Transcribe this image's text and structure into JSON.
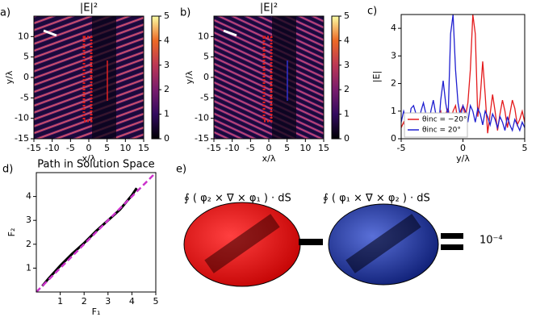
{
  "chart_data": [
    {
      "type": "heatmap",
      "panel_label": "a)",
      "title": "|E|²",
      "xlabel": "x/λ",
      "ylabel": "y/λ",
      "xlim": [
        -15,
        15
      ],
      "ylim": [
        -15,
        15
      ],
      "xticks": [
        -15,
        -10,
        -5,
        0,
        5,
        10,
        15
      ],
      "yticks": [
        -15,
        -10,
        -5,
        0,
        5,
        10
      ],
      "clim": [
        0,
        5
      ],
      "cticks": [
        0,
        1,
        2,
        3,
        4,
        5
      ]
    },
    {
      "type": "heatmap",
      "panel_label": "b)",
      "title": "|E|²",
      "xlabel": "x/λ",
      "ylabel": "y/λ",
      "xlim": [
        -15,
        15
      ],
      "ylim": [
        -15,
        15
      ],
      "xticks": [
        -15,
        -10,
        -5,
        0,
        5,
        10,
        15
      ],
      "yticks": [
        -15,
        -10,
        -5,
        0,
        5,
        10
      ],
      "clim": [
        0,
        5
      ],
      "cticks": [
        0,
        1,
        2,
        3,
        4,
        5
      ]
    },
    {
      "type": "line",
      "panel_label": "c)",
      "xlabel": "y/λ",
      "ylabel": "|E|",
      "xlim": [
        -5,
        5
      ],
      "ylim": [
        0,
        4.5
      ],
      "xticks": [
        -5,
        0,
        5
      ],
      "yticks": [
        0,
        1,
        2,
        3,
        4
      ],
      "legend": "lower left",
      "x": [
        -5.0,
        -4.8,
        -4.6,
        -4.4,
        -4.2,
        -4.0,
        -3.8,
        -3.6,
        -3.4,
        -3.2,
        -3.0,
        -2.8,
        -2.6,
        -2.4,
        -2.2,
        -2.0,
        -1.8,
        -1.6,
        -1.4,
        -1.2,
        -1.0,
        -0.8,
        -0.6,
        -0.4,
        -0.2,
        0.0,
        0.2,
        0.4,
        0.6,
        0.8,
        1.0,
        1.2,
        1.4,
        1.6,
        1.8,
        2.0,
        2.2,
        2.4,
        2.6,
        2.8,
        3.0,
        3.2,
        3.4,
        3.6,
        3.8,
        4.0,
        4.2,
        4.4,
        4.6,
        4.8,
        5.0
      ],
      "series": [
        {
          "name": "θinc = −20°",
          "color": "#e41a1c",
          "values": [
            0.4,
            0.6,
            0.3,
            0.5,
            0.7,
            0.3,
            0.5,
            0.8,
            0.3,
            0.6,
            0.8,
            0.4,
            0.7,
            0.9,
            0.5,
            0.8,
            1.0,
            0.5,
            0.9,
            1.1,
            0.6,
            1.0,
            1.2,
            0.6,
            1.0,
            1.2,
            0.8,
            1.3,
            2.5,
            4.5,
            3.8,
            0.8,
            1.5,
            2.8,
            1.6,
            0.2,
            0.9,
            1.6,
            1.0,
            0.3,
            0.9,
            1.4,
            1.0,
            0.4,
            0.9,
            1.4,
            1.1,
            0.5,
            0.7,
            1.0,
            0.6
          ]
        },
        {
          "name": "θinc = 20°",
          "color": "#1f1fd0",
          "values": [
            0.6,
            1.0,
            0.7,
            0.5,
            1.1,
            1.2,
            0.9,
            0.4,
            1.0,
            1.3,
            0.9,
            0.3,
            1.0,
            1.4,
            0.9,
            0.2,
            1.4,
            2.1,
            1.3,
            0.8,
            3.8,
            4.5,
            2.5,
            1.3,
            0.8,
            1.2,
            1.0,
            0.6,
            1.2,
            1.0,
            0.6,
            1.1,
            0.9,
            0.5,
            1.0,
            0.8,
            0.5,
            0.9,
            0.7,
            0.4,
            0.8,
            0.6,
            0.3,
            0.8,
            0.5,
            0.3,
            0.7,
            0.5,
            0.3,
            0.6,
            0.4
          ]
        }
      ]
    },
    {
      "type": "line",
      "panel_label": "d)",
      "title": "Path in Solution Space",
      "xlabel": "F₁",
      "ylabel": "F₂",
      "xlim": [
        0,
        5
      ],
      "ylim": [
        0,
        5
      ],
      "xticks": [
        1,
        2,
        3,
        4,
        5
      ],
      "yticks": [
        1,
        2,
        3,
        4
      ],
      "series": [
        {
          "color": "#000000",
          "style": "solid",
          "x": [
            0.25,
            0.5,
            1.0,
            1.5,
            2.0,
            2.5,
            3.0,
            3.5,
            4.0,
            4.2
          ],
          "values": [
            0.25,
            0.55,
            1.1,
            1.6,
            2.05,
            2.55,
            3.0,
            3.45,
            4.05,
            4.35
          ]
        },
        {
          "color": "#cc33cc",
          "style": "dashed",
          "x": [
            0,
            5
          ],
          "values": [
            0,
            5
          ]
        }
      ]
    }
  ],
  "panel_e": {
    "label": "e)",
    "formula_left": "∮ ( φ₂ × ∇ × φ₁ ) · dS",
    "formula_right": "∮ ( φ₁ × ∇ × φ₂ ) · dS",
    "result": "10⁻⁴"
  }
}
